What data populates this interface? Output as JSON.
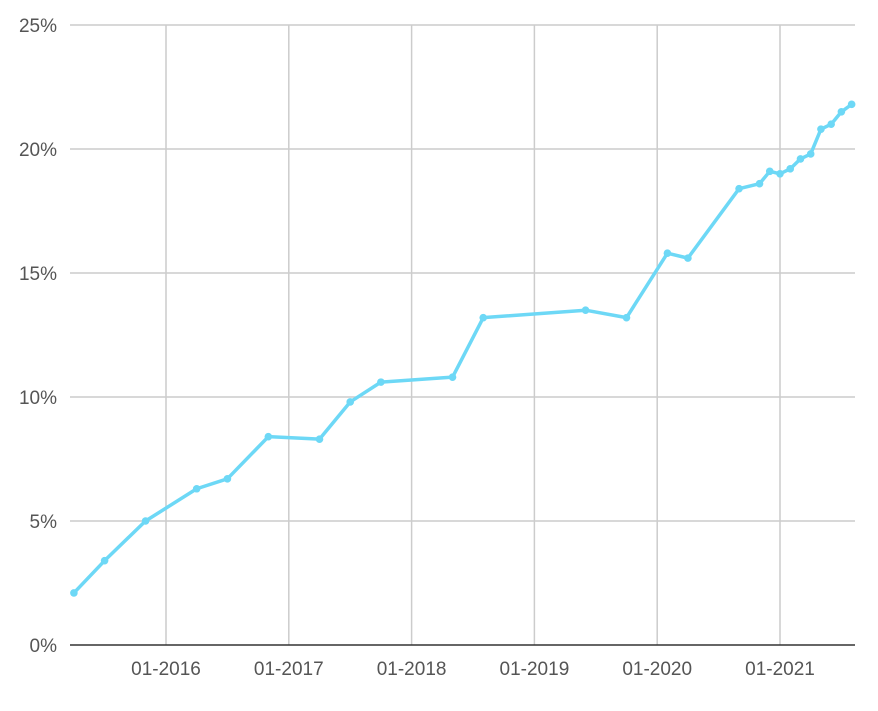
{
  "chart_data": {
    "type": "line",
    "title": "",
    "xlabel": "",
    "ylabel": "",
    "ylim": [
      0,
      25
    ],
    "y_ticks": [
      "0%",
      "5%",
      "10%",
      "15%",
      "20%",
      "25%"
    ],
    "y_tick_values": [
      0,
      5,
      10,
      15,
      20,
      25
    ],
    "x_ticks": [
      "01-2016",
      "01-2017",
      "01-2018",
      "01-2019",
      "01-2020",
      "01-2021"
    ],
    "x_tick_values": [
      "2016-01",
      "2017-01",
      "2018-01",
      "2019-01",
      "2020-01",
      "2021-01"
    ],
    "grid": true,
    "legend": "none",
    "color": "#6dd8f6",
    "series": [
      {
        "x": [
          "2015-04",
          "2015-07",
          "2015-11",
          "2016-04",
          "2016-07",
          "2016-11",
          "2017-04",
          "2017-07",
          "2017-10",
          "2018-05",
          "2018-08",
          "2019-06",
          "2019-10",
          "2020-02",
          "2020-04",
          "2020-09",
          "2020-11",
          "2020-12",
          "2021-01",
          "2021-02",
          "2021-03",
          "2021-04",
          "2021-05",
          "2021-06",
          "2021-07",
          "2021-08"
        ],
        "values": [
          2.1,
          3.4,
          5.0,
          6.3,
          6.7,
          8.4,
          8.3,
          9.8,
          10.6,
          10.8,
          13.2,
          13.5,
          13.2,
          15.8,
          15.6,
          18.4,
          18.6,
          19.1,
          19.0,
          19.2,
          19.6,
          19.8,
          20.8,
          21.0,
          21.5,
          21.8
        ]
      }
    ]
  }
}
